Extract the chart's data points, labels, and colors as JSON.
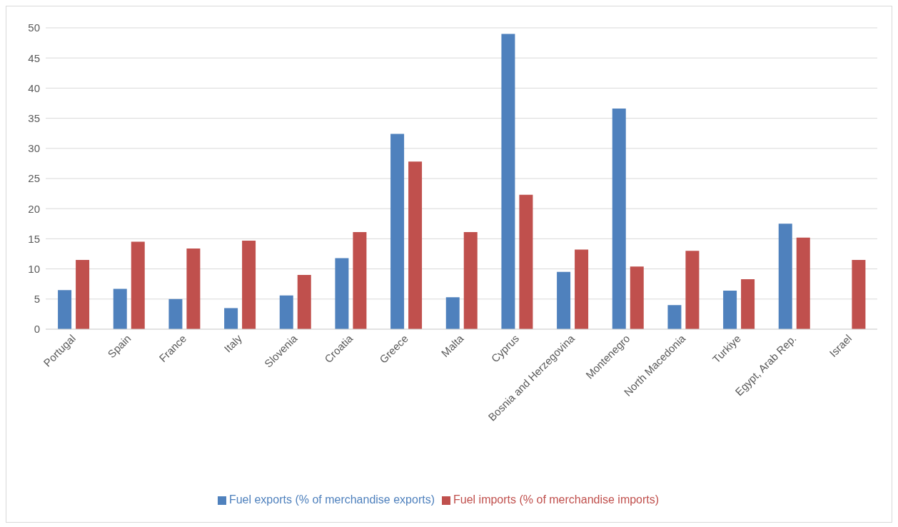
{
  "chart_data": {
    "type": "bar",
    "categories": [
      "Portugal",
      "Spain",
      "France",
      "Italy",
      "Slovenia",
      "Croatia",
      "Greece",
      "Malta",
      "Cyprus",
      "Bosnia and Herzegovina",
      "Montenegro",
      "North Macedonia",
      "Turkiye",
      "Egypt, Arab Rep.",
      "Israel"
    ],
    "series": [
      {
        "name": "Fuel exports (% of merchandise exports)",
        "color": "#4f81bd",
        "values": [
          6.5,
          6.7,
          5.0,
          3.5,
          5.6,
          11.8,
          32.4,
          5.3,
          49.0,
          9.5,
          36.6,
          4.0,
          6.4,
          17.5,
          null
        ]
      },
      {
        "name": "Fuel imports (% of merchandise imports)",
        "color": "#c0504d",
        "values": [
          11.5,
          14.5,
          13.4,
          14.7,
          9.0,
          16.1,
          27.8,
          16.1,
          22.3,
          13.2,
          10.4,
          13.0,
          8.3,
          15.2,
          11.5
        ]
      }
    ],
    "ylim": [
      0,
      50
    ],
    "yticks": [
      0,
      5,
      10,
      15,
      20,
      25,
      30,
      35,
      40,
      45,
      50
    ],
    "grid": "y",
    "legend": "bottom"
  }
}
